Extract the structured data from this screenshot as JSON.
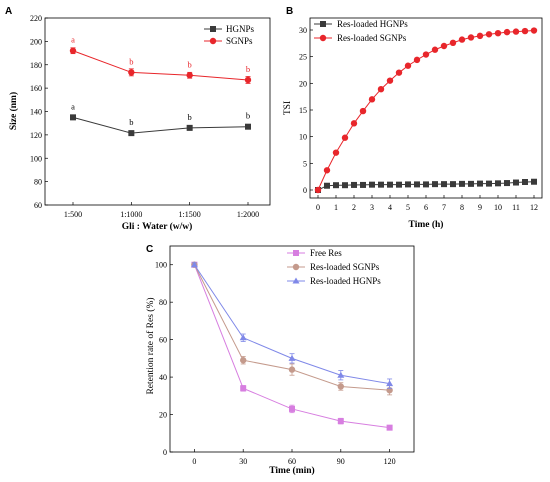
{
  "chart_data": [
    {
      "panel_label": "A",
      "type": "line",
      "xlabel": "Gli : Water (w/w)",
      "ylabel": "Size (nm)",
      "categories": [
        "1:500",
        "1:1000",
        "1:1500",
        "1:2000"
      ],
      "ylim": [
        60,
        220
      ],
      "yticks": [
        60,
        80,
        100,
        120,
        140,
        160,
        180,
        200,
        220
      ],
      "legend_position": "top-right",
      "series": [
        {
          "name": "HGNPs",
          "color": "#3a3a3a",
          "marker": "square",
          "values": [
            135,
            121.5,
            126,
            127
          ],
          "errors": [
            2,
            1.5,
            2,
            1.5
          ],
          "letters": [
            "a",
            "b",
            "b",
            "b"
          ]
        },
        {
          "name": "SGNPs",
          "color": "#e8262b",
          "marker": "circle",
          "values": [
            192,
            173.5,
            171,
            167
          ],
          "errors": [
            2.5,
            3,
            2.5,
            3
          ],
          "letters": [
            "a",
            "b",
            "b",
            "b"
          ]
        }
      ]
    },
    {
      "panel_label": "B",
      "type": "line",
      "xlabel": "Time (h)",
      "ylabel": "TSI",
      "xlim": [
        0,
        12
      ],
      "xticks": [
        0,
        1,
        2,
        3,
        4,
        5,
        6,
        7,
        8,
        9,
        10,
        11,
        12
      ],
      "ylim": [
        0,
        30
      ],
      "yticks": [
        0,
        5,
        10,
        15,
        20,
        25,
        30
      ],
      "legend_position": "top-left",
      "series": [
        {
          "name": "Res-loaded HGNPs",
          "color": "#3a3a3a",
          "marker": "square",
          "x": [
            0,
            0.5,
            1,
            1.5,
            2,
            2.5,
            3,
            3.5,
            4,
            4.5,
            5,
            5.5,
            6,
            6.5,
            7,
            7.5,
            8,
            8.5,
            9,
            9.5,
            10,
            10.5,
            11,
            11.5,
            12
          ],
          "values": [
            0,
            0.8,
            0.9,
            0.9,
            0.95,
            0.95,
            1.0,
            1.0,
            1.0,
            1.0,
            1.05,
            1.05,
            1.05,
            1.1,
            1.1,
            1.1,
            1.15,
            1.15,
            1.2,
            1.2,
            1.25,
            1.3,
            1.4,
            1.5,
            1.55
          ]
        },
        {
          "name": "Res-loaded SGNPs",
          "color": "#e8262b",
          "marker": "circle",
          "x": [
            0,
            0.5,
            1,
            1.5,
            2,
            2.5,
            3,
            3.5,
            4,
            4.5,
            5,
            5.5,
            6,
            6.5,
            7,
            7.5,
            8,
            8.5,
            9,
            9.5,
            10,
            10.5,
            11,
            11.5,
            12
          ],
          "values": [
            0,
            3.7,
            7.0,
            9.8,
            12.5,
            14.8,
            17.0,
            18.9,
            20.5,
            22.0,
            23.3,
            24.4,
            25.4,
            26.3,
            27.0,
            27.6,
            28.2,
            28.6,
            28.9,
            29.2,
            29.4,
            29.6,
            29.7,
            29.8,
            29.9
          ]
        }
      ]
    },
    {
      "panel_label": "C",
      "type": "line",
      "xlabel": "Time (min)",
      "ylabel": "Retention rate of  Res (%)",
      "xlim": [
        -15,
        135
      ],
      "xticks": [
        0,
        30,
        60,
        90,
        120
      ],
      "ylim": [
        0,
        110
      ],
      "yticks": [
        0,
        20,
        40,
        60,
        80,
        100
      ],
      "legend_position": "top-right",
      "series": [
        {
          "name": "Free Res",
          "color": "#d77ee0",
          "marker": "square",
          "x": [
            0,
            30,
            60,
            90,
            120
          ],
          "values": [
            100,
            34,
            23,
            16.5,
            13
          ],
          "errors": [
            1,
            1.5,
            2,
            1.5,
            1
          ]
        },
        {
          "name": "Res-loaded SGNPs",
          "color": "#c49a8c",
          "marker": "circle",
          "x": [
            0,
            30,
            60,
            90,
            120
          ],
          "values": [
            100,
            49,
            44,
            35,
            33
          ],
          "errors": [
            1,
            2,
            3,
            2,
            2.5
          ]
        },
        {
          "name": "Res-loaded HGNPs",
          "color": "#7f88e8",
          "marker": "triangle",
          "x": [
            0,
            30,
            60,
            90,
            120
          ],
          "values": [
            100,
            61,
            50,
            41,
            36.5
          ],
          "errors": [
            1,
            2,
            2.5,
            2.5,
            2.5
          ]
        }
      ]
    }
  ]
}
